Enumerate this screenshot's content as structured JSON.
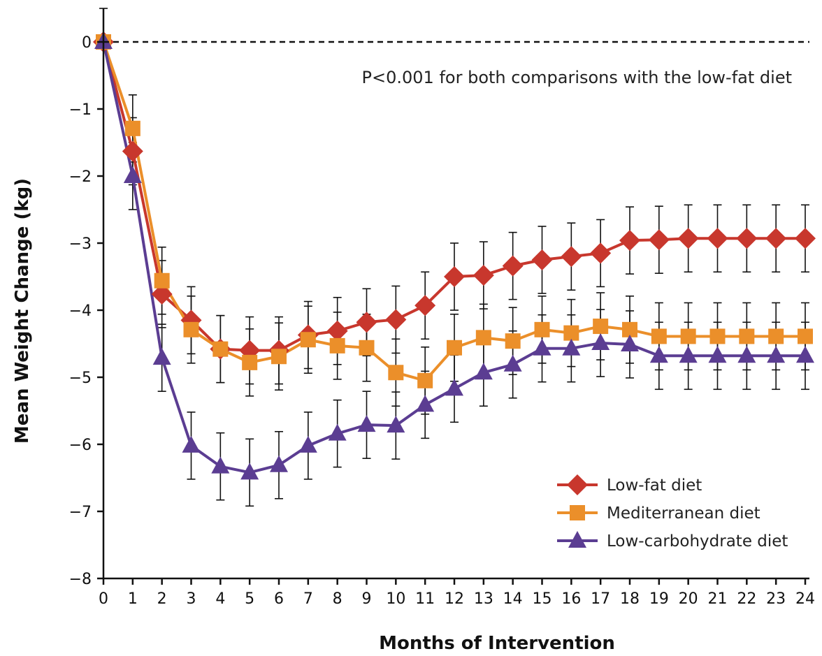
{
  "chart_data": {
    "type": "line",
    "title": "",
    "xlabel": "Months of Intervention",
    "ylabel": "Mean Weight Change (kg)",
    "xlim": [
      0,
      24
    ],
    "ylim": [
      -8,
      0
    ],
    "x": [
      0,
      1,
      2,
      3,
      4,
      5,
      6,
      7,
      8,
      9,
      10,
      11,
      12,
      13,
      14,
      15,
      16,
      17,
      18,
      19,
      20,
      21,
      22,
      23,
      24
    ],
    "x_ticks": [
      "0",
      "1",
      "2",
      "3",
      "4",
      "5",
      "6",
      "7",
      "8",
      "9",
      "10",
      "11",
      "12",
      "13",
      "14",
      "15",
      "16",
      "17",
      "18",
      "19",
      "20",
      "21",
      "22",
      "23",
      "24"
    ],
    "y_ticks": [
      0,
      -1,
      -2,
      -3,
      -4,
      -5,
      -6,
      -7,
      -8
    ],
    "y_tick_labels": [
      "0",
      "−1",
      "−2",
      "−3",
      "−4",
      "−5",
      "−6",
      "−7",
      "−8"
    ],
    "grid": false,
    "reference_line": {
      "y": 0,
      "style": "dashed"
    },
    "annotation": "P<0.001 for both comparisons with the low-fat diet",
    "legend_position": "bottom-right",
    "series": [
      {
        "name": "Low-fat diet",
        "marker": "diamond",
        "color": "#c8372d",
        "values": [
          0,
          -1.63,
          -3.76,
          -4.15,
          -4.58,
          -4.6,
          -4.6,
          -4.37,
          -4.31,
          -4.18,
          -4.14,
          -3.93,
          -3.5,
          -3.48,
          -3.34,
          -3.25,
          -3.2,
          -3.15,
          -2.96,
          -2.95,
          -2.93,
          -2.93,
          -2.93,
          -2.93,
          -2.93
        ],
        "error": [
          0,
          0.5,
          0.5,
          0.5,
          0.5,
          0.5,
          0.5,
          0.5,
          0.5,
          0.5,
          0.5,
          0.5,
          0.5,
          0.5,
          0.5,
          0.5,
          0.5,
          0.5,
          0.5,
          0.5,
          0.5,
          0.5,
          0.5,
          0.5,
          0.5
        ]
      },
      {
        "name": "Mediterranean diet",
        "marker": "square",
        "color": "#eb8f2a",
        "values": [
          0,
          -1.29,
          -3.56,
          -4.29,
          -4.58,
          -4.78,
          -4.69,
          -4.44,
          -4.53,
          -4.56,
          -4.93,
          -5.05,
          -4.56,
          -4.41,
          -4.46,
          -4.29,
          -4.34,
          -4.24,
          -4.29,
          -4.39,
          -4.39,
          -4.39,
          -4.39,
          -4.39,
          -4.39
        ],
        "error": [
          0,
          0.5,
          0.5,
          0.5,
          0.5,
          0.5,
          0.5,
          0.5,
          0.5,
          0.5,
          0.5,
          0.5,
          0.5,
          0.5,
          0.5,
          0.5,
          0.5,
          0.5,
          0.5,
          0.5,
          0.5,
          0.5,
          0.5,
          0.5,
          0.5
        ]
      },
      {
        "name": "Low-carbohydrate diet",
        "marker": "triangle",
        "color": "#5b3d92",
        "values": [
          0,
          -2.0,
          -4.71,
          -6.02,
          -6.33,
          -6.42,
          -6.31,
          -6.02,
          -5.84,
          -5.71,
          -5.72,
          -5.41,
          -5.17,
          -4.93,
          -4.81,
          -4.57,
          -4.57,
          -4.49,
          -4.51,
          -4.68,
          -4.68,
          -4.68,
          -4.68,
          -4.68,
          -4.68
        ],
        "error": [
          0,
          0.5,
          0.5,
          0.5,
          0.5,
          0.5,
          0.5,
          0.5,
          0.5,
          0.5,
          0.5,
          0.5,
          0.5,
          0.5,
          0.5,
          0.5,
          0.5,
          0.5,
          0.5,
          0.5,
          0.5,
          0.5,
          0.5,
          0.5,
          0.5
        ]
      }
    ]
  }
}
